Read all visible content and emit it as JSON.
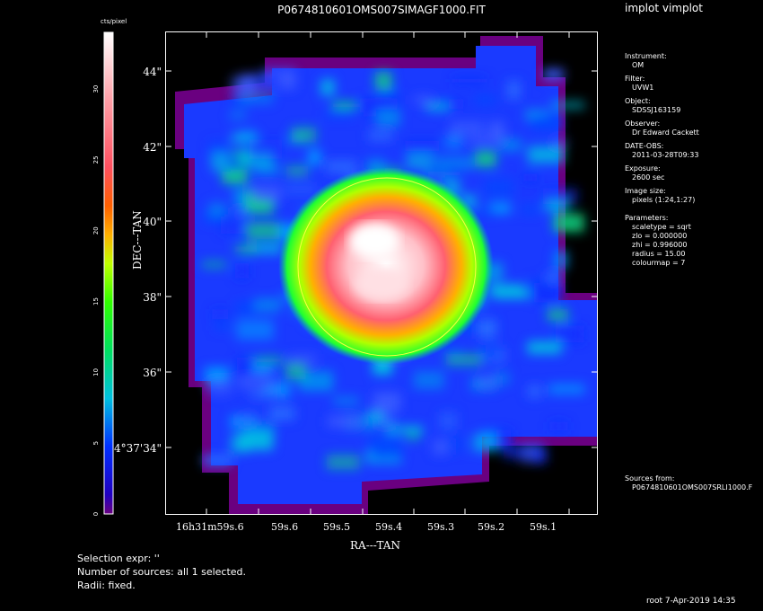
{
  "title": "P0674810601OMS007SIMAGF1000.FIT",
  "program_title": "implot vimplot",
  "colorbar": {
    "title": "cts/pixel",
    "ticks": [
      "0",
      "5",
      "10",
      "15",
      "20",
      "25",
      "30"
    ],
    "max": 34
  },
  "axes": {
    "xlabel": "RA---TAN",
    "ylabel": "DEC---TAN",
    "xticks": [
      "16h31m59s.6",
      "59s.6",
      "59s.5",
      "59s.4",
      "59s.3",
      "59s.2",
      "59s.1"
    ],
    "yticks": [
      "44\"",
      "42\"",
      "40\"",
      "38\"",
      "36\"",
      "4°37'34\""
    ]
  },
  "meta": [
    {
      "label": "Instrument:",
      "value": "OM"
    },
    {
      "label": "Filter:",
      "value": "UVW1"
    },
    {
      "label": "Object:",
      "value": "SDSSJ163159"
    },
    {
      "label": "Observer:",
      "value": "Dr Edward Cackett"
    },
    {
      "label": "DATE-OBS:",
      "value": "2011-03-28T09:33"
    },
    {
      "label": "Exposure:",
      "value": "2600 sec"
    },
    {
      "label": "Image size:",
      "value": "pixels (1:24,1:27)"
    }
  ],
  "params_label": "Parameters:",
  "params": [
    "scaletype = sqrt",
    "zlo = 0.000000",
    "zhi = 0.996000",
    "radius = 15.00",
    "colourmap = 7"
  ],
  "sources_label": "Sources from:",
  "sources_value": "P0674810601OMS007SRLI1000.F",
  "bottom": {
    "line1": "Selection expr: ''",
    "line2": "Number of sources: all 1 selected.",
    "line3": "Radii: fixed."
  },
  "footer": "root  7-Apr-2019 14:35"
}
